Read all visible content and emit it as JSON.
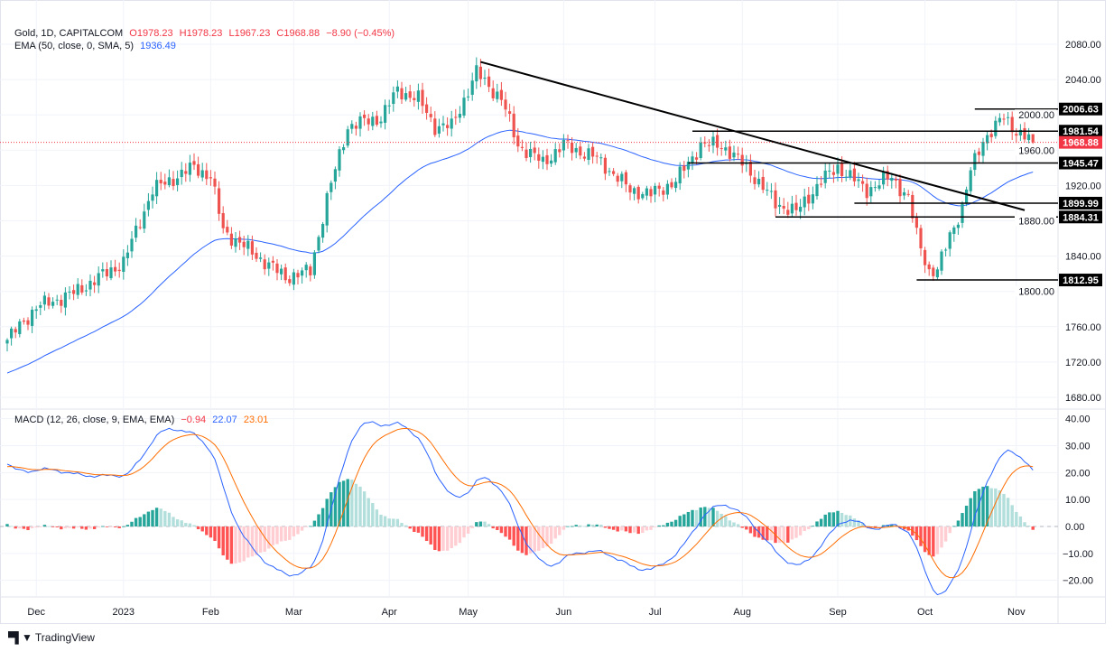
{
  "header": {
    "symbol": "Gold, 1D, CAPITALCOM",
    "open": "O1978.23",
    "high": "H1978.23",
    "low": "L1967.23",
    "close": "C1968.88",
    "change": "−8.90 (−0.45%)",
    "ema_label": "EMA (50, close, 0, SMA, 5)",
    "ema_value": "1936.49"
  },
  "macd_legend": {
    "label": "MACD (12, 26, close, 9, EMA, EMA)",
    "hist": "−0.94",
    "macd": "22.07",
    "signal": "23.01"
  },
  "footer": {
    "brand": "TradingView",
    "logo": "TV"
  },
  "colors": {
    "up": "#26a69a",
    "down": "#ef5350",
    "ema": "#2962ff",
    "macd": "#2962ff",
    "signal": "#ff6d00",
    "price_label": "#f23645"
  },
  "chart_data": {
    "type": "candlestick",
    "title": "Gold, 1D, CAPITALCOM",
    "anchors_close": [
      [
        0,
        1745
      ],
      [
        7,
        1782
      ],
      [
        16,
        1798
      ],
      [
        28,
        1833
      ],
      [
        35,
        1915
      ],
      [
        45,
        1941
      ],
      [
        49,
        1930
      ],
      [
        52,
        1869
      ],
      [
        59,
        1844
      ],
      [
        67,
        1816
      ],
      [
        73,
        1823
      ],
      [
        77,
        1905
      ],
      [
        82,
        1987
      ],
      [
        90,
        1997
      ],
      [
        94,
        2028
      ],
      [
        99,
        2018
      ],
      [
        103,
        1987
      ],
      [
        107,
        1987
      ],
      [
        113,
        2048
      ],
      [
        119,
        2018
      ],
      [
        123,
        1966
      ],
      [
        129,
        1946
      ],
      [
        134,
        1966
      ],
      [
        142,
        1951
      ],
      [
        150,
        1915
      ],
      [
        155,
        1910
      ],
      [
        161,
        1925
      ],
      [
        167,
        1966
      ],
      [
        172,
        1966
      ],
      [
        178,
        1941
      ],
      [
        185,
        1900
      ],
      [
        190,
        1890
      ],
      [
        196,
        1925
      ],
      [
        200,
        1941
      ],
      [
        207,
        1915
      ],
      [
        213,
        1930
      ],
      [
        217,
        1905
      ],
      [
        219,
        1864
      ],
      [
        222,
        1823
      ],
      [
        224,
        1823
      ],
      [
        227,
        1864
      ],
      [
        230,
        1895
      ],
      [
        232,
        1936
      ],
      [
        235,
        1972
      ],
      [
        240,
        1997
      ],
      [
        243,
        1982
      ],
      [
        247,
        1968.88
      ]
    ],
    "last_bar": {
      "open": 1978.23,
      "high": 1978.23,
      "low": 1967.23,
      "close": 1968.88
    },
    "x_ticks": [
      {
        "label": "Dec",
        "bar": 7
      },
      {
        "label": "2023",
        "bar": 28
      },
      {
        "label": "Feb",
        "bar": 49
      },
      {
        "label": "Mar",
        "bar": 69
      },
      {
        "label": "Apr",
        "bar": 92
      },
      {
        "label": "May",
        "bar": 111
      },
      {
        "label": "Jun",
        "bar": 134
      },
      {
        "label": "Jul",
        "bar": 156
      },
      {
        "label": "Aug",
        "bar": 177
      },
      {
        "label": "Sep",
        "bar": 200
      },
      {
        "label": "Oct",
        "bar": 221
      },
      {
        "label": "Nov",
        "bar": 243
      }
    ],
    "price_ticks": [
      "2080.00",
      "2040.00",
      "2000.00",
      "1960.00",
      "1920.00",
      "1880.00",
      "1840.00",
      "1800.00",
      "1760.00",
      "1720.00",
      "1680.00"
    ],
    "ylim": [
      1680,
      2080
    ],
    "ema": {
      "period": 50,
      "seed": 1706
    },
    "horizontal_levels": [
      {
        "price": 2006.63,
        "label": "2006.63",
        "from_bar": 233
      },
      {
        "price": 1981.54,
        "label": "1981.54",
        "from_bar": 165
      },
      {
        "price": 1945.47,
        "label": "1945.47",
        "from_bar": 164
      },
      {
        "price": 1899.99,
        "label": "1899.99",
        "from_bar": 204
      },
      {
        "price": 1884.31,
        "label": "1884.31",
        "from_bar": 185
      },
      {
        "price": 1812.95,
        "label": "1812.95",
        "from_bar": 219
      }
    ],
    "trendline": {
      "from": {
        "bar": 114,
        "price": 2060
      },
      "to": {
        "bar": 245,
        "price": 1892
      }
    },
    "current_price": {
      "price": 1968.88,
      "label": "1968.88"
    },
    "macd": {
      "ticks": [
        "40.00",
        "30.00",
        "20.00",
        "10.00",
        "0.00",
        "−10.00",
        "−20.00"
      ],
      "ylim": [
        -28,
        42
      ]
    }
  }
}
